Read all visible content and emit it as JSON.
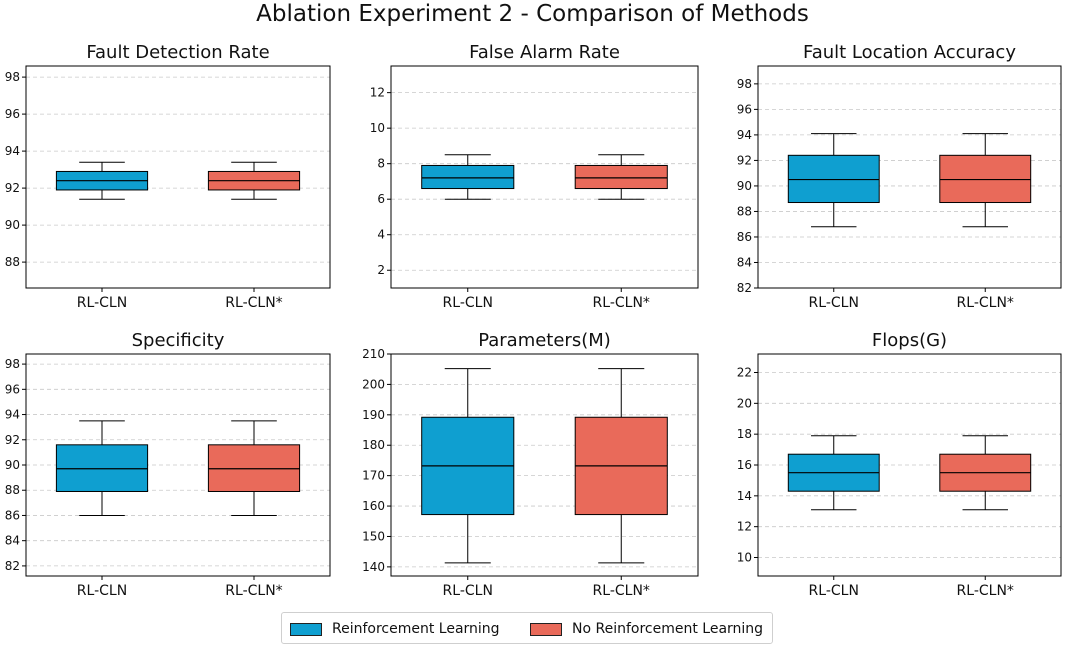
{
  "figure_title": "Ablation Experiment 2 - Comparison of Methods",
  "colors": {
    "rl": "#0f9fd0",
    "no_rl": "#e96a5a"
  },
  "legend": {
    "items": [
      {
        "label": "Reinforcement Learning",
        "color": "#0f9fd0"
      },
      {
        "label": "No Reinforcement Learning",
        "color": "#e96a5a"
      }
    ]
  },
  "chart_data": [
    {
      "type": "box",
      "title": "Fault Detection Rate",
      "categories": [
        "RL-CLN",
        "RL-CLN*"
      ],
      "ylim": [
        86.6,
        98.6
      ],
      "yticks": [
        88,
        90,
        92,
        94,
        96,
        98
      ],
      "series": [
        {
          "name": "Reinforcement Learning",
          "whisker_low": 91.4,
          "q1": 91.9,
          "median": 92.4,
          "q3": 92.9,
          "whisker_high": 93.4
        },
        {
          "name": "No Reinforcement Learning",
          "whisker_low": 91.4,
          "q1": 91.9,
          "median": 92.4,
          "q3": 92.9,
          "whisker_high": 93.4
        }
      ]
    },
    {
      "type": "box",
      "title": "False Alarm Rate",
      "categories": [
        "RL-CLN",
        "RL-CLN*"
      ],
      "ylim": [
        1,
        13.5
      ],
      "yticks": [
        2,
        4,
        6,
        8,
        10,
        12
      ],
      "series": [
        {
          "name": "Reinforcement Learning",
          "whisker_low": 6.0,
          "q1": 6.6,
          "median": 7.2,
          "q3": 7.9,
          "whisker_high": 8.5
        },
        {
          "name": "No Reinforcement Learning",
          "whisker_low": 6.0,
          "q1": 6.6,
          "median": 7.2,
          "q3": 7.9,
          "whisker_high": 8.5
        }
      ]
    },
    {
      "type": "box",
      "title": "Fault Location Accuracy",
      "categories": [
        "RL-CLN",
        "RL-CLN*"
      ],
      "ylim": [
        82,
        99.4
      ],
      "yticks": [
        82,
        84,
        86,
        88,
        90,
        92,
        94,
        96,
        98
      ],
      "series": [
        {
          "name": "Reinforcement Learning",
          "whisker_low": 86.8,
          "q1": 88.7,
          "median": 90.5,
          "q3": 92.4,
          "whisker_high": 94.1
        },
        {
          "name": "No Reinforcement Learning",
          "whisker_low": 86.8,
          "q1": 88.7,
          "median": 90.5,
          "q3": 92.4,
          "whisker_high": 94.1
        }
      ]
    },
    {
      "type": "box",
      "title": "Specificity",
      "categories": [
        "RL-CLN",
        "RL-CLN*"
      ],
      "ylim": [
        81.2,
        98.8
      ],
      "yticks": [
        82,
        84,
        86,
        88,
        90,
        92,
        94,
        96,
        98
      ],
      "series": [
        {
          "name": "Reinforcement Learning",
          "whisker_low": 86.0,
          "q1": 87.9,
          "median": 89.7,
          "q3": 91.6,
          "whisker_high": 93.5
        },
        {
          "name": "No Reinforcement Learning",
          "whisker_low": 86.0,
          "q1": 87.9,
          "median": 89.7,
          "q3": 91.6,
          "whisker_high": 93.5
        }
      ]
    },
    {
      "type": "box",
      "title": "Parameters(M)",
      "categories": [
        "RL-CLN",
        "RL-CLN*"
      ],
      "ylim": [
        137,
        210
      ],
      "yticks": [
        140,
        150,
        160,
        170,
        180,
        190,
        200,
        210
      ],
      "series": [
        {
          "name": "Reinforcement Learning",
          "whisker_low": 141.3,
          "q1": 157.2,
          "median": 173.2,
          "q3": 189.2,
          "whisker_high": 205.2
        },
        {
          "name": "No Reinforcement Learning",
          "whisker_low": 141.3,
          "q1": 157.2,
          "median": 173.2,
          "q3": 189.2,
          "whisker_high": 205.2
        }
      ]
    },
    {
      "type": "box",
      "title": "Flops(G)",
      "categories": [
        "RL-CLN",
        "RL-CLN*"
      ],
      "ylim": [
        8.8,
        23.2
      ],
      "yticks": [
        10,
        12,
        14,
        16,
        18,
        20,
        22
      ],
      "series": [
        {
          "name": "Reinforcement Learning",
          "whisker_low": 13.1,
          "q1": 14.3,
          "median": 15.5,
          "q3": 16.7,
          "whisker_high": 17.9
        },
        {
          "name": "No Reinforcement Learning",
          "whisker_low": 13.1,
          "q1": 14.3,
          "median": 15.5,
          "q3": 16.7,
          "whisker_high": 17.9
        }
      ]
    }
  ]
}
